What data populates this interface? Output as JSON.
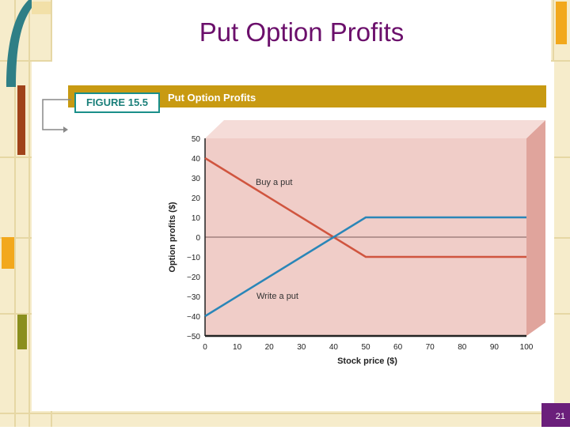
{
  "slide": {
    "title": "Put Option Profits",
    "page_number": "21",
    "figure_label": "FIGURE 15.5",
    "figure_title": "Put Option Profits"
  },
  "colors": {
    "title": "#6b0f6b",
    "figure_bar": "#c89a12",
    "plot_bg": "#f0cdc8",
    "buy_put": "#d0553f",
    "write_put": "#2a86b8"
  },
  "chart_data": {
    "type": "line",
    "xlabel": "Stock price ($)",
    "ylabel": "Option profits ($)",
    "xlim": [
      0,
      100
    ],
    "ylim": [
      -50,
      50
    ],
    "x_ticks": [
      "0",
      "10",
      "20",
      "30",
      "40",
      "50",
      "60",
      "70",
      "80",
      "90",
      "100"
    ],
    "y_ticks": [
      "50",
      "40",
      "30",
      "20",
      "10",
      "0",
      "−10",
      "−20",
      "−30",
      "−40",
      "−50"
    ],
    "series": [
      {
        "name": "Buy a put",
        "x": [
          0,
          50,
          100
        ],
        "y": [
          40,
          -10,
          -10
        ]
      },
      {
        "name": "Write a put",
        "x": [
          0,
          50,
          100
        ],
        "y": [
          -40,
          10,
          10
        ]
      }
    ]
  }
}
